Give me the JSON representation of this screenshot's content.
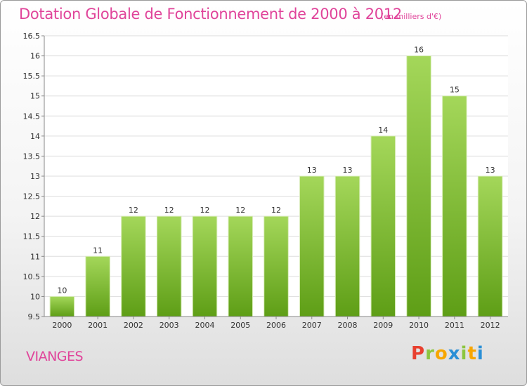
{
  "header": {
    "title": "Dotation Globale de Fonctionnement de 2000 à 2012",
    "unit": "(en milliers d'€)"
  },
  "footer": {
    "commune": "VIANGES",
    "logo_letters": [
      "P",
      "r",
      "o",
      "x",
      "i",
      "t",
      "i"
    ],
    "logo_colors": [
      "#e8402f",
      "#8cc63f",
      "#f7a600",
      "#2a8fd6",
      "#8cc63f",
      "#f7a600",
      "#2a8fd6"
    ]
  },
  "colors": {
    "title": "#e0449a",
    "bar_light": "#a4d75a",
    "bar_dark": "#5e9e16",
    "axis": "#888888",
    "grid": "#dddddd",
    "tick_text": "#333333"
  },
  "chart_data": {
    "type": "bar",
    "title": "Dotation Globale de Fonctionnement de 2000 à 2012",
    "subtitle": "(en milliers d'€)",
    "categories": [
      "2000",
      "2001",
      "2002",
      "2003",
      "2004",
      "2005",
      "2006",
      "2007",
      "2008",
      "2009",
      "2010",
      "2011",
      "2012"
    ],
    "values": [
      10,
      11,
      12,
      12,
      12,
      12,
      12,
      13,
      13,
      14,
      16,
      15,
      13
    ],
    "data_labels": [
      "10",
      "11",
      "12",
      "12",
      "12",
      "12",
      "12",
      "13",
      "13",
      "14",
      "16",
      "15",
      "13"
    ],
    "ylim": [
      9.5,
      16.5
    ],
    "yticks": [
      9.5,
      10,
      10.5,
      11,
      11.5,
      12,
      12.5,
      13,
      13.5,
      14,
      14.5,
      15,
      15.5,
      16,
      16.5
    ],
    "ytick_labels": [
      "9.5",
      "10",
      "10.5",
      "11",
      "11.5",
      "12",
      "12.5",
      "13",
      "13.5",
      "14",
      "14.5",
      "15",
      "15.5",
      "16",
      "16.5"
    ],
    "xlabel": "",
    "ylabel": "",
    "grid": true
  }
}
